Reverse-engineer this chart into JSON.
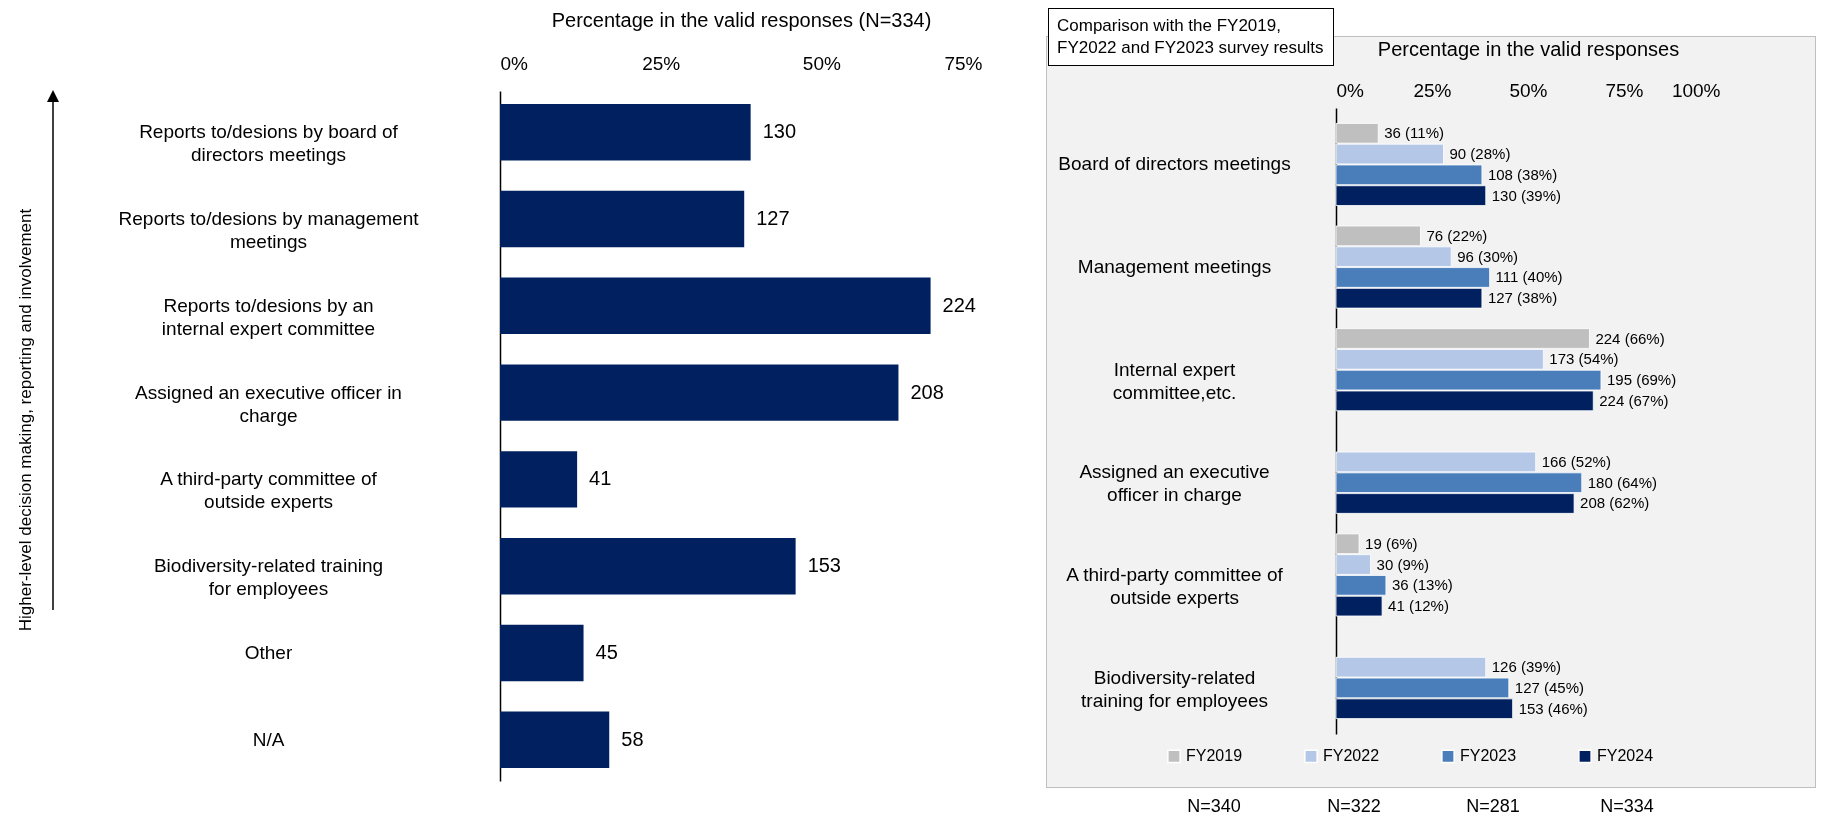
{
  "chart_data": [
    {
      "type": "bar",
      "orientation": "horizontal",
      "xlabel": "Percentage in the valid responses (N=334)",
      "ylabel": "Higher-level decision making, reporting and involvement",
      "categories": [
        "Reports to/desions by board of directors meetings",
        "Reports to/desions by management meetings",
        "Reports to/desions by an internal expert committee",
        "Assigned an executive officer in charge",
        "A third-party committee of outside experts",
        "Biodiversity-related training for employees",
        "Other",
        "N/A"
      ],
      "values": [
        39,
        38,
        67,
        62,
        12,
        46,
        13,
        17
      ],
      "color": "#002060",
      "xlim": [
        0,
        75
      ],
      "xticks": [
        {
          "value": 0,
          "label": "0%"
        },
        {
          "value": 25,
          "label": "25%"
        },
        {
          "value": 50,
          "label": "50%"
        },
        {
          "value": 75,
          "label": "75%"
        }
      ],
      "grid": false,
      "annotations": [
        {
          "text": "130",
          "x": 39,
          "y": "Reports to/desions by board of directors meetings"
        },
        {
          "text": "127",
          "x": 38,
          "y": "Reports to/desions by management meetings"
        },
        {
          "text": "224",
          "x": 67,
          "y": "Reports to/desions by an internal expert committee"
        },
        {
          "text": "208",
          "x": 62,
          "y": "Assigned an executive officer in charge"
        },
        {
          "text": "41",
          "x": 12,
          "y": "A third-party committee of outside experts"
        },
        {
          "text": "153",
          "x": 46,
          "y": "Biodiversity-related training for employees"
        },
        {
          "text": "45",
          "x": 13,
          "y": "Other"
        },
        {
          "text": "58",
          "x": 17,
          "y": "N/A"
        }
      ]
    },
    {
      "type": "bar",
      "orientation": "horizontal",
      "xlabel": "Percentage in the valid responses",
      "categories": [
        "Board of directors meetings",
        "Management meetings",
        "Internal expert committee,etc.",
        "Assigned an executive officer in charge",
        "A third-party committee of outside experts",
        "Biodiversity-related training for employees"
      ],
      "series": [
        {
          "name": "FY2019",
          "color": "#bfbfbf",
          "values": [
            11,
            22,
            66,
            null,
            6,
            null
          ],
          "value_labels": [
            "36 (11%)",
            "76 (22%)",
            "224 (66%)",
            null,
            "19 (6%)",
            null
          ]
        },
        {
          "name": "FY2022",
          "color": "#b4c7e7",
          "values": [
            28,
            30,
            54,
            52,
            9,
            39
          ],
          "value_labels": [
            "90 (28%)",
            "96 (30%)",
            "173 (54%)",
            "166 (52%)",
            "30 (9%)",
            "126 (39%)"
          ]
        },
        {
          "name": "FY2023",
          "color": "#4a7ebb",
          "values": [
            38,
            40,
            69,
            64,
            13,
            45
          ],
          "value_labels": [
            "108 (38%)",
            "111 (40%)",
            "195 (69%)",
            "180 (64%)",
            "36 (13%)",
            "127 (45%)"
          ]
        },
        {
          "name": "FY2024",
          "color": "#002060",
          "values": [
            39,
            38,
            67,
            62,
            12,
            46
          ],
          "value_labels": [
            "130 (39%)",
            "127 (38%)",
            "224 (67%)",
            "208 (62%)",
            "41 (12%)",
            "153 (46%)"
          ]
        }
      ],
      "xlim": [
        0,
        100
      ],
      "xticks": [
        {
          "value": 0,
          "label": "0%"
        },
        {
          "value": 25,
          "label": "25%"
        },
        {
          "value": 50,
          "label": "50%"
        },
        {
          "value": 75,
          "label": "75%"
        },
        {
          "value": 100,
          "label": "100%"
        }
      ],
      "grid": false,
      "legend": "bottom",
      "annotations": [
        "Comparison with the FY2019, FY2022 and FY2023 survey results",
        "N=340",
        "N=322",
        "N=281",
        "N=334"
      ]
    }
  ]
}
